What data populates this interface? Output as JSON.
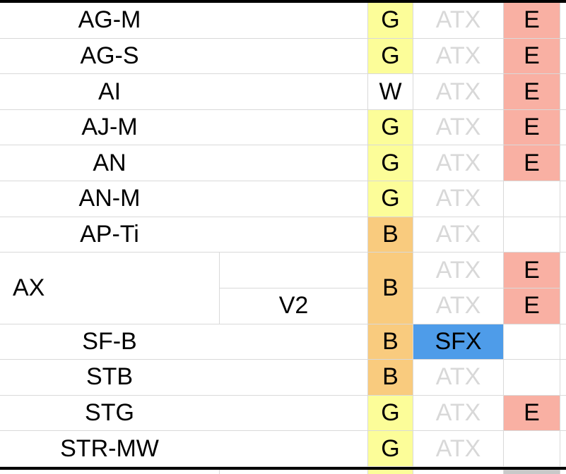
{
  "palette": {
    "code_yellow": "#fcfd99",
    "code_orange": "#f9cb7e",
    "e_salmon": "#f9b0a3",
    "sfx_blue": "#4e9ce9",
    "partial_gray": "#c9c9c9",
    "muted_text": "#d8d8d8",
    "grid_line": "#d9d9d9",
    "thick_border": "#000000"
  },
  "table": {
    "rows": [
      {
        "label": "AG-M",
        "code": "G",
        "code_fill": "fill-yellow",
        "form": "ATX",
        "form_style": "form-muted",
        "e": "E",
        "e_fill": "fill-salmon"
      },
      {
        "label": "AG-S",
        "code": "G",
        "code_fill": "fill-yellow",
        "form": "ATX",
        "form_style": "form-muted",
        "e": "E",
        "e_fill": "fill-salmon"
      },
      {
        "label": "AI",
        "code": "W",
        "code_fill": "fill-white",
        "form": "ATX",
        "form_style": "form-muted",
        "e": "E",
        "e_fill": "fill-salmon"
      },
      {
        "label": "AJ-M",
        "code": "G",
        "code_fill": "fill-yellow",
        "form": "ATX",
        "form_style": "form-muted",
        "e": "E",
        "e_fill": "fill-salmon"
      },
      {
        "label": "AN",
        "code": "G",
        "code_fill": "fill-yellow",
        "form": "ATX",
        "form_style": "form-muted",
        "e": "E",
        "e_fill": "fill-salmon"
      },
      {
        "label": "AN-M",
        "code": "G",
        "code_fill": "fill-yellow",
        "form": "ATX",
        "form_style": "form-muted",
        "e": "",
        "e_fill": "fill-none"
      },
      {
        "label": "AP-Ti",
        "code": "B",
        "code_fill": "fill-orange",
        "form": "ATX",
        "form_style": "form-muted",
        "e": "",
        "e_fill": "fill-none"
      },
      {
        "label": "SF-B",
        "code": "B",
        "code_fill": "fill-orange",
        "form": "SFX",
        "form_style": "form-sfx",
        "e": "",
        "e_fill": "fill-none"
      },
      {
        "label": "STB",
        "code": "B",
        "code_fill": "fill-orange",
        "form": "ATX",
        "form_style": "form-muted",
        "e": "",
        "e_fill": "fill-none"
      },
      {
        "label": "STG",
        "code": "G",
        "code_fill": "fill-yellow",
        "form": "ATX",
        "form_style": "form-muted",
        "e": "E",
        "e_fill": "fill-salmon"
      },
      {
        "label": "STR-MW",
        "code": "G",
        "code_fill": "fill-yellow",
        "form": "ATX",
        "form_style": "form-muted",
        "e": "",
        "e_fill": "fill-none"
      }
    ],
    "merged_row": {
      "label": "AX",
      "code": "B",
      "code_fill": "fill-orange",
      "sub_rows": [
        {
          "variant": "",
          "form": "ATX",
          "form_style": "form-muted",
          "e": "E",
          "e_fill": "fill-salmon"
        },
        {
          "variant": "V2",
          "form": "ATX",
          "form_style": "form-muted",
          "e": "E",
          "e_fill": "fill-salmon"
        }
      ]
    },
    "partial_row": {
      "code_fill": "fill-yellow",
      "e_fill": "fill-gray"
    }
  }
}
